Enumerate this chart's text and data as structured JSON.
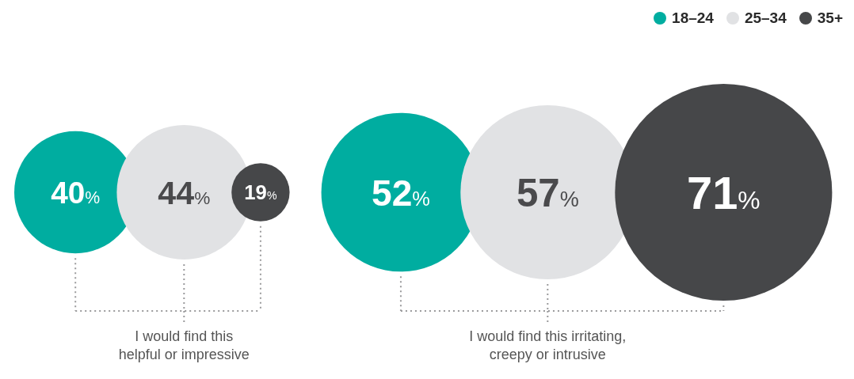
{
  "chart_data": {
    "type": "other",
    "categories": [
      "I would find this helpful or impressive",
      "I would find this irritating, creepy or intrusive"
    ],
    "series": [
      {
        "name": "18–24",
        "color": "#00ada0",
        "values": [
          40,
          52
        ],
        "value_labels": [
          "40%",
          "52%"
        ]
      },
      {
        "name": "25–34",
        "color": "#e1e2e4",
        "values": [
          44,
          57
        ],
        "value_labels": [
          "44%",
          "57%"
        ]
      },
      {
        "name": "35+",
        "color": "#464749",
        "values": [
          19,
          71
        ],
        "value_labels": [
          "19%",
          "71%"
        ]
      }
    ],
    "legend": "top right"
  }
}
